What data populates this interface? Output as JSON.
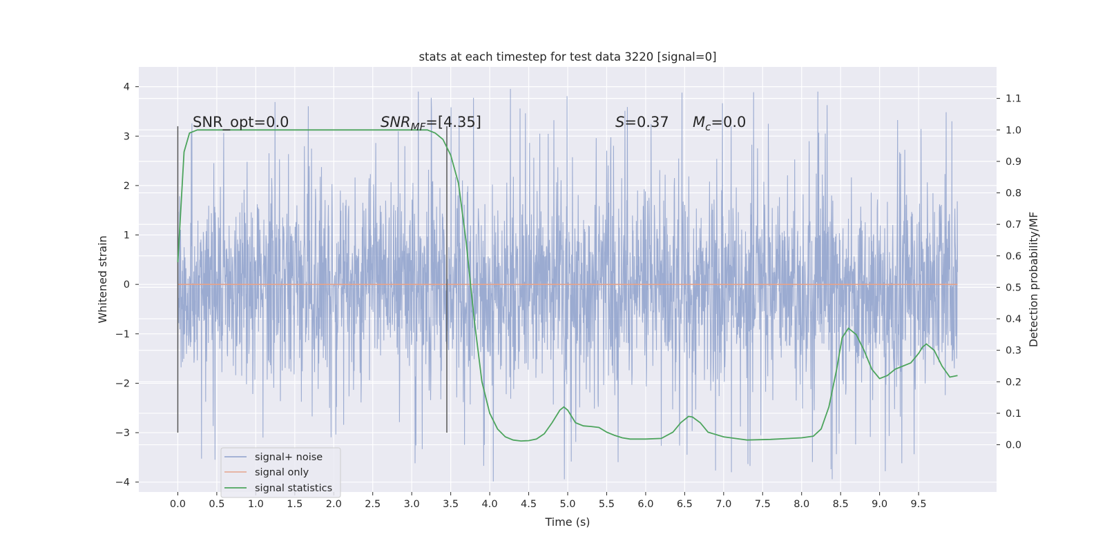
{
  "chart_data": {
    "type": "line",
    "title": "stats at each timestep for test data 3220 [signal=0]",
    "xlabel": "Time (s)",
    "ylabel": "Whitened strain",
    "y2label": "Detection probability/MF",
    "xlim": [
      -0.5,
      10.5
    ],
    "ylim": [
      -4.2,
      4.4
    ],
    "y2lim": [
      -0.15,
      1.2
    ],
    "x_ticks": [
      "0.0",
      "0.5",
      "1.0",
      "1.5",
      "2.0",
      "2.5",
      "3.0",
      "3.5",
      "4.0",
      "4.5",
      "5.0",
      "5.5",
      "6.0",
      "6.5",
      "7.0",
      "7.5",
      "8.0",
      "8.5",
      "9.0",
      "9.5"
    ],
    "y_ticks": [
      "4",
      "3",
      "2",
      "1",
      "0",
      "−1",
      "−2",
      "−3",
      "−4"
    ],
    "y2_ticks": [
      "1.1",
      "1.0",
      "0.9",
      "0.8",
      "0.7",
      "0.6",
      "0.5",
      "0.4",
      "0.3",
      "0.2",
      "0.1",
      "0.0"
    ],
    "grid": true,
    "legend_position": "lower-left",
    "annotations": {
      "snr_opt": "SNR_opt=0.0",
      "snr_mf_main": "SNR",
      "snr_mf_sub": "MF",
      "snr_mf_value": "=[4.35]",
      "s_main": "S",
      "s_value": "=0.37",
      "mc_main": "M",
      "mc_sub": "c",
      "mc_value": "=0.0"
    },
    "vlines": [
      {
        "x": 0.0,
        "ymin": -3.0,
        "ymax": 3.2
      },
      {
        "x": 3.45,
        "ymin": -3.0,
        "ymax": 3.2
      }
    ],
    "series": [
      {
        "name": "signal+ noise",
        "color": "#8da0cb",
        "description_level": "dense noise roughly within ±2, spikes to ±4",
        "x_range": [
          0.0,
          10.0
        ],
        "typical_amplitude": 1.8,
        "peak_amplitude": 4.0
      },
      {
        "name": "signal only",
        "color": "#e5a38b",
        "x": [
          0.0,
          10.0
        ],
        "y": [
          0.0,
          0.0
        ]
      },
      {
        "name": "signal statistics",
        "color": "#4ca45c",
        "axis": "right",
        "x": [
          0.0,
          0.08,
          0.15,
          0.25,
          0.5,
          1.0,
          1.5,
          2.0,
          2.5,
          3.0,
          3.2,
          3.3,
          3.4,
          3.5,
          3.6,
          3.7,
          3.8,
          3.9,
          4.0,
          4.1,
          4.2,
          4.3,
          4.4,
          4.5,
          4.6,
          4.7,
          4.8,
          4.9,
          4.95,
          5.0,
          5.1,
          5.2,
          5.3,
          5.4,
          5.5,
          5.6,
          5.7,
          5.8,
          6.0,
          6.2,
          6.35,
          6.45,
          6.55,
          6.6,
          6.7,
          6.8,
          7.0,
          7.3,
          7.6,
          8.0,
          8.15,
          8.25,
          8.35,
          8.45,
          8.52,
          8.6,
          8.7,
          8.8,
          8.9,
          9.0,
          9.1,
          9.2,
          9.3,
          9.4,
          9.5,
          9.55,
          9.6,
          9.7,
          9.8,
          9.9,
          10.0
        ],
        "y": [
          0.58,
          0.93,
          0.99,
          1.0,
          1.0,
          1.0,
          1.0,
          1.0,
          1.0,
          1.0,
          1.0,
          0.99,
          0.97,
          0.92,
          0.83,
          0.64,
          0.4,
          0.2,
          0.1,
          0.05,
          0.025,
          0.015,
          0.012,
          0.013,
          0.018,
          0.035,
          0.07,
          0.11,
          0.12,
          0.11,
          0.07,
          0.06,
          0.058,
          0.055,
          0.04,
          0.03,
          0.022,
          0.018,
          0.018,
          0.02,
          0.04,
          0.07,
          0.09,
          0.088,
          0.07,
          0.04,
          0.025,
          0.015,
          0.017,
          0.022,
          0.027,
          0.05,
          0.12,
          0.24,
          0.34,
          0.37,
          0.35,
          0.3,
          0.24,
          0.21,
          0.22,
          0.24,
          0.25,
          0.26,
          0.29,
          0.31,
          0.32,
          0.3,
          0.25,
          0.215,
          0.22
        ]
      }
    ]
  }
}
